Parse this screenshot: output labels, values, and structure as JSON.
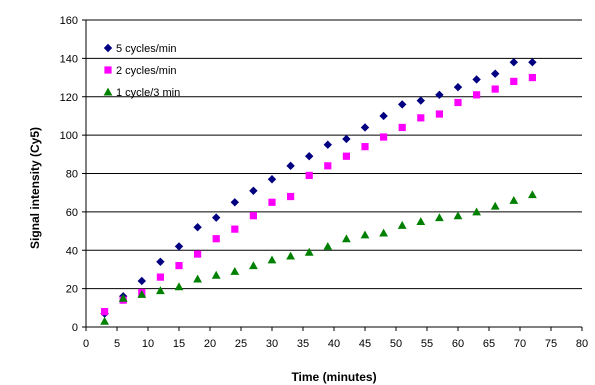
{
  "chart_data": {
    "type": "scatter",
    "title": "",
    "xlabel": "Time (minutes)",
    "ylabel": "Signal intensity (Cy5)",
    "xlim": [
      0,
      80
    ],
    "ylim": [
      0,
      160
    ],
    "xticks": [
      0,
      5,
      10,
      15,
      20,
      25,
      30,
      35,
      40,
      45,
      50,
      55,
      60,
      65,
      70,
      75,
      80
    ],
    "yticks": [
      0,
      20,
      40,
      60,
      80,
      100,
      120,
      140,
      160
    ],
    "grid": "horizontal",
    "legend_position": "top-left",
    "series": [
      {
        "name": "5 cycles/min",
        "marker": "diamond",
        "color": "#000080",
        "x": [
          3,
          6,
          9,
          12,
          15,
          18,
          21,
          24,
          27,
          30,
          33,
          36,
          39,
          42,
          45,
          48,
          51,
          54,
          57,
          60,
          63,
          66,
          69,
          72
        ],
        "y": [
          7,
          16,
          24,
          34,
          42,
          52,
          57,
          65,
          71,
          77,
          84,
          89,
          95,
          98,
          104,
          110,
          116,
          118,
          121,
          125,
          129,
          132,
          138,
          138
        ]
      },
      {
        "name": "2 cycles/min",
        "marker": "square",
        "color": "#ff00ff",
        "x": [
          3,
          6,
          9,
          12,
          15,
          18,
          21,
          24,
          27,
          30,
          33,
          36,
          39,
          42,
          45,
          48,
          51,
          54,
          57,
          60,
          63,
          66,
          69,
          72
        ],
        "y": [
          8,
          14,
          18,
          26,
          32,
          38,
          46,
          51,
          58,
          65,
          68,
          79,
          84,
          89,
          94,
          99,
          104,
          109,
          111,
          117,
          121,
          124,
          128,
          130
        ]
      },
      {
        "name": "1 cycle/3 min",
        "marker": "triangle",
        "color": "#008000",
        "x": [
          3,
          6,
          9,
          12,
          15,
          18,
          21,
          24,
          27,
          30,
          33,
          36,
          39,
          42,
          45,
          48,
          51,
          54,
          57,
          60,
          63,
          66,
          69,
          72
        ],
        "y": [
          3,
          15,
          17,
          19,
          21,
          25,
          27,
          29,
          32,
          35,
          37,
          39,
          42,
          46,
          48,
          49,
          53,
          55,
          57,
          58,
          60,
          63,
          66,
          69
        ]
      }
    ]
  }
}
